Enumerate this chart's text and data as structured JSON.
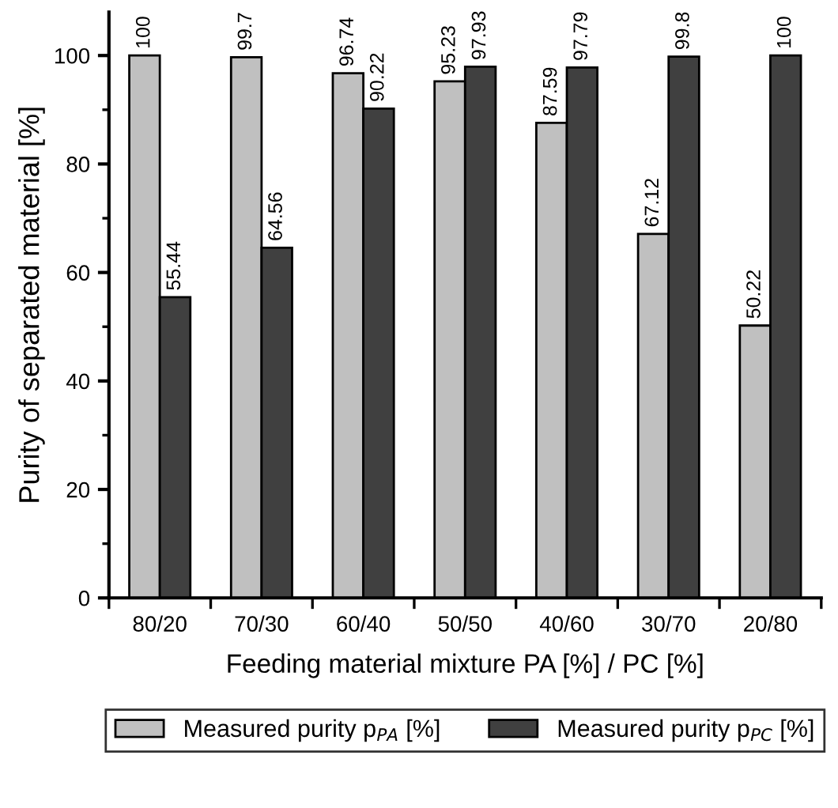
{
  "chart_data": {
    "type": "bar",
    "xlabel": "Feeding material mixture PA [%] / PC [%]",
    "ylabel": "Purity of separated material [%]",
    "categories": [
      "80/20",
      "70/30",
      "60/40",
      "50/50",
      "40/60",
      "30/70",
      "20/80"
    ],
    "series": [
      {
        "name": "Measured purity p$_{PA}$ [%]",
        "color": "#c0c0c0",
        "values": [
          100,
          99.7,
          96.74,
          95.23,
          87.59,
          67.12,
          50.22
        ]
      },
      {
        "name": "Measured purity p$_{PC}$ [%]",
        "color": "#404040",
        "values": [
          55.44,
          64.56,
          90.22,
          97.93,
          97.79,
          99.8,
          100
        ]
      }
    ],
    "ylim": [
      0,
      108
    ],
    "yticks": [
      0,
      20,
      40,
      60,
      80,
      100
    ],
    "data_labels": true,
    "legend": "bottom",
    "grid": false
  }
}
